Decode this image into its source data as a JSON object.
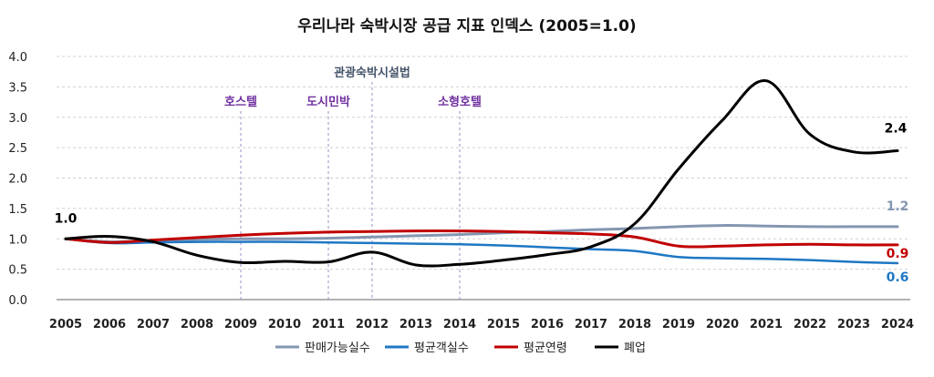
{
  "chart_data": {
    "type": "line",
    "title": "우리나라 숙박시장 공급 지표 인덱스 (2005=1.0)",
    "xlabel": "",
    "ylabel": "",
    "x": [
      "2005",
      "2006",
      "2007",
      "2008",
      "2009",
      "2010",
      "2011",
      "2012",
      "2013",
      "2014",
      "2015",
      "2016",
      "2017",
      "2018",
      "2019",
      "2020",
      "2021",
      "2022",
      "2023",
      "2024"
    ],
    "ylim": [
      0,
      4.0
    ],
    "yticks": [
      "0.0",
      "0.5",
      "1.0",
      "1.5",
      "2.0",
      "2.5",
      "3.0",
      "3.5",
      "4.0"
    ],
    "grid": "horizontal dashed",
    "legend_position": "bottom",
    "series": [
      {
        "name": "판매가능실수",
        "color": "#8496b0",
        "values": [
          1.0,
          0.95,
          0.97,
          0.99,
          1.0,
          1.0,
          1.01,
          1.03,
          1.05,
          1.07,
          1.1,
          1.12,
          1.15,
          1.17,
          1.2,
          1.22,
          1.21,
          1.2,
          1.2,
          1.2
        ]
      },
      {
        "name": "평균객실수",
        "color": "#1f77c4",
        "values": [
          1.0,
          0.93,
          0.94,
          0.95,
          0.95,
          0.95,
          0.94,
          0.93,
          0.92,
          0.91,
          0.89,
          0.86,
          0.83,
          0.8,
          0.7,
          0.68,
          0.67,
          0.65,
          0.62,
          0.6
        ]
      },
      {
        "name": "평균연령",
        "color": "#c00000",
        "values": [
          1.0,
          0.94,
          0.98,
          1.02,
          1.06,
          1.09,
          1.11,
          1.12,
          1.13,
          1.13,
          1.12,
          1.1,
          1.08,
          1.03,
          0.88,
          0.88,
          0.9,
          0.91,
          0.9,
          0.9
        ]
      },
      {
        "name": "폐업",
        "color": "#000000",
        "values": [
          1.0,
          1.04,
          0.95,
          0.73,
          0.61,
          0.63,
          0.62,
          0.78,
          0.57,
          0.58,
          0.65,
          0.74,
          0.87,
          1.25,
          2.15,
          2.95,
          3.6,
          2.72,
          2.43,
          2.45
        ]
      }
    ],
    "annotations": [
      {
        "text": "1.0",
        "year": "2005",
        "value": 1.0,
        "color": "#000000"
      },
      {
        "text": "2.4",
        "year": "2024",
        "value": 2.45,
        "color": "#000000"
      },
      {
        "text": "1.2",
        "year": "2024",
        "value": 1.2,
        "color": "#8496b0"
      },
      {
        "text": "0.9",
        "year": "2024",
        "value": 0.9,
        "color": "#c00000"
      },
      {
        "text": "0.6",
        "year": "2024",
        "value": 0.6,
        "color": "#1f77c4"
      }
    ],
    "events": [
      {
        "label": "호스텔",
        "year": "2009",
        "color": "#7030a0"
      },
      {
        "label": "도시민박",
        "year": "2011",
        "color": "#7030a0"
      },
      {
        "label": "관광숙박시설법",
        "year": "2012",
        "color": "#44546a"
      },
      {
        "label": "소형호텔",
        "year": "2014",
        "color": "#7030a0"
      }
    ],
    "colors": {
      "axis": "#222222",
      "grid": "#d0d0d0",
      "event_line": "#9b8fc4"
    }
  }
}
